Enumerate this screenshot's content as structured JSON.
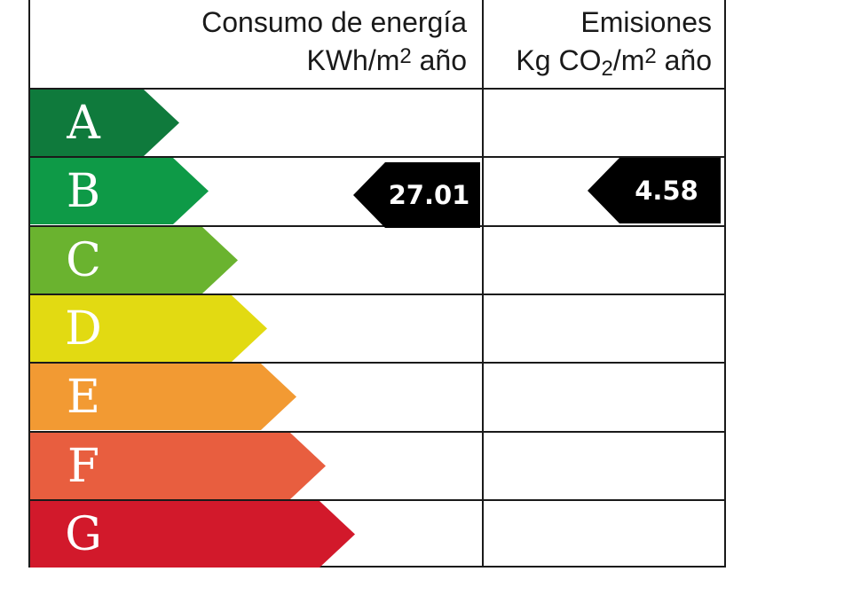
{
  "header": {
    "energy_title": "Consumo de energía",
    "energy_unit_pre": "KWh/m",
    "energy_unit_sup": "2",
    "energy_unit_post": " año",
    "emissions_title": "Emisiones",
    "emissions_unit_pre": "Kg CO",
    "emissions_unit_sub": "2",
    "emissions_unit_mid": "/m",
    "emissions_unit_sup": "2",
    "emissions_unit_post": " año"
  },
  "chart_data": {
    "type": "table",
    "categories": [
      "A",
      "B",
      "C",
      "D",
      "E",
      "F",
      "G"
    ],
    "colors": [
      "#0f7a3c",
      "#0e9a47",
      "#6ab32f",
      "#e2da12",
      "#f29a33",
      "#e85e3f",
      "#d2192b"
    ],
    "energy_consumption": {
      "value": "27.01",
      "rating": "B"
    },
    "emissions": {
      "value": "4.58",
      "rating": "B"
    }
  }
}
